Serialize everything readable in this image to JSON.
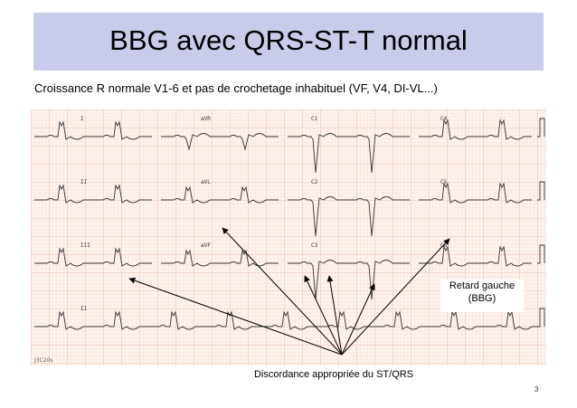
{
  "slide": {
    "title": "BBG avec QRS-ST-T normal",
    "subtitle": "Croissance R normale V1-6 et pas de crochetage inhabituel (VF, V4, DI-VL...)",
    "page_number": "3"
  },
  "ecg": {
    "lead_labels": [
      "I",
      "aVR",
      "C1",
      "C4",
      "II",
      "aVL",
      "C2",
      "C5",
      "III",
      "aVF",
      "C3",
      "C6",
      "II"
    ],
    "footer_code": "J3C20s"
  },
  "annotations": {
    "retard_line1": "Retard gauche",
    "retard_line2": "(BBG)",
    "discordance": "Discordance appropriée du ST/QRS"
  },
  "colors": {
    "title_band": "#c9cbea",
    "grid_minor": "#f4c9b6",
    "grid_major": "#e69b82",
    "trace": "#333333"
  }
}
